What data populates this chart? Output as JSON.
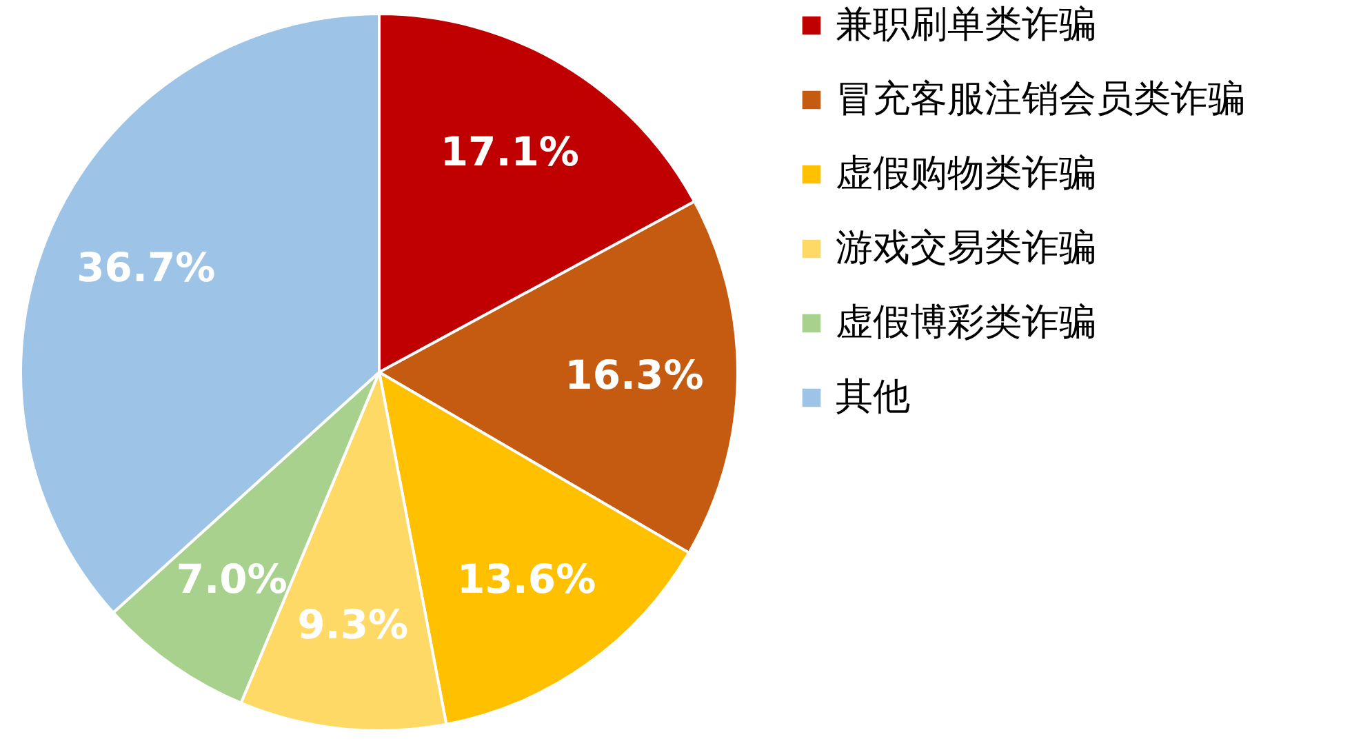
{
  "chart_data": {
    "type": "pie",
    "categories": [
      "兼职刷单类诈骗",
      "冒充客服注销会员类诈骗",
      "虚假购物类诈骗",
      "游戏交易类诈骗",
      "虚假博彩类诈骗",
      "其他"
    ],
    "values": [
      17.1,
      16.3,
      13.6,
      9.3,
      7.0,
      36.7
    ],
    "colors": [
      "#c00000",
      "#c55a11",
      "#ffc000",
      "#ffd966",
      "#a9d18e",
      "#9dc3e6"
    ],
    "value_labels": [
      "17.1%",
      "16.3%",
      "13.6%",
      "9.3%",
      "7.0%",
      "36.7%"
    ],
    "legend": "right"
  }
}
